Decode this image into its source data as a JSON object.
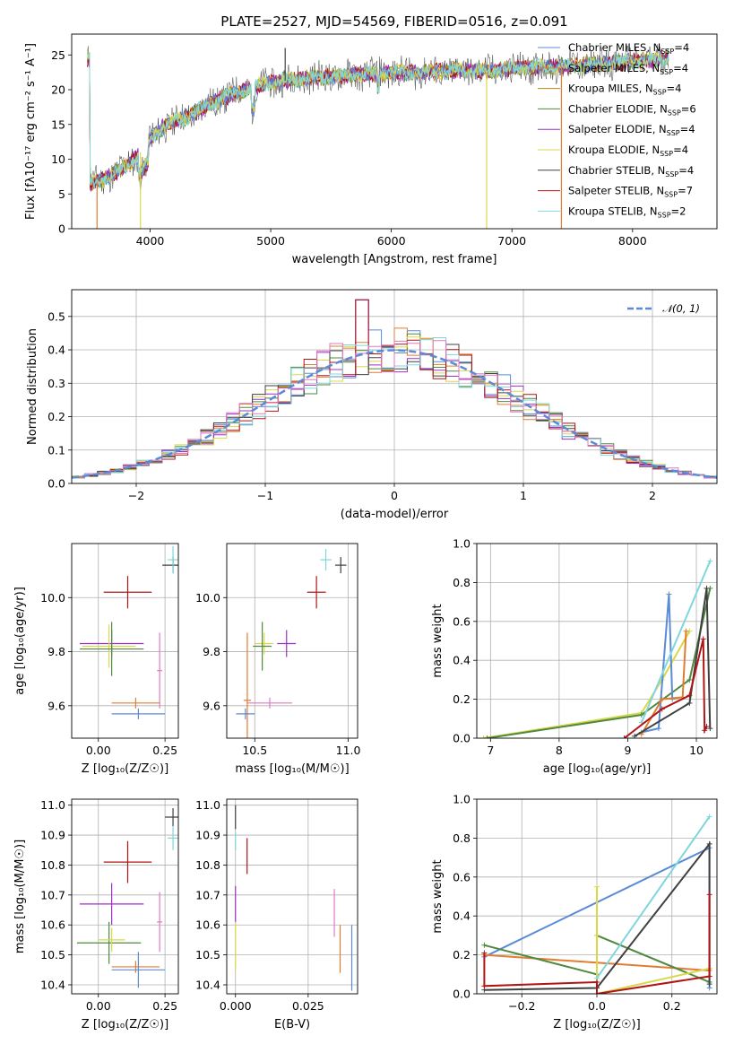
{
  "title": "PLATE=2527, MJD=54569, FIBERID=0516, z=0.091",
  "colors": {
    "chabrier_miles": "#5b8bd6",
    "salpeter_miles": "#e27c30",
    "kroupa_miles": "#b8860b",
    "chabrier_elodie": "#4f8a3f",
    "salpeter_elodie": "#9b30c8",
    "kroupa_elodie": "#d8d84a",
    "chabrier_stelib": "#404040",
    "salpeter_stelib": "#b01515",
    "kroupa_stelib": "#7fd6dc",
    "pink": "#e377c2",
    "grid": "#b0b0b0",
    "normal_curve": "#5b8bd6"
  },
  "chart_data": [
    {
      "id": "spectrum",
      "type": "line",
      "xlabel": "wavelength [Angstrom, rest frame]",
      "ylabel": "Flux [fλ10⁻¹⁷ erg cm⁻² s⁻¹ A⁻¹]",
      "xlim": [
        3350,
        8700
      ],
      "ylim": [
        0,
        28
      ],
      "xticks": [
        "4000",
        "5000",
        "6000",
        "7000",
        "8000"
      ],
      "yticks": [
        "0",
        "5",
        "10",
        "15",
        "20",
        "25"
      ],
      "grid": false,
      "legend_position": "top-right",
      "legend": [
        {
          "label": "Chabrier MILES, N",
          "sub": "SSP",
          "tail": "=4",
          "color": "chabrier_miles"
        },
        {
          "label": "Salpeter MILES, N",
          "sub": "SSP",
          "tail": "=4",
          "color": "salpeter_miles"
        },
        {
          "label": "Kroupa MILES, N",
          "sub": "SSP",
          "tail": "=4",
          "color": "kroupa_miles"
        },
        {
          "label": "Chabrier ELODIE, N",
          "sub": "SSP",
          "tail": "=6",
          "color": "chabrier_elodie"
        },
        {
          "label": "Salpeter ELODIE, N",
          "sub": "SSP",
          "tail": "=4",
          "color": "salpeter_elodie"
        },
        {
          "label": "Kroupa ELODIE, N",
          "sub": "SSP",
          "tail": "=4",
          "color": "kroupa_elodie"
        },
        {
          "label": "Chabrier STELIB, N",
          "sub": "SSP",
          "tail": "=4",
          "color": "chabrier_stelib"
        },
        {
          "label": "Salpeter STELIB, N",
          "sub": "SSP",
          "tail": "=7",
          "color": "salpeter_stelib"
        },
        {
          "label": "Kroupa STELIB, N",
          "sub": "SSP",
          "tail": "=2",
          "color": "kroupa_stelib"
        }
      ],
      "continuum": {
        "x": [
          3500,
          3600,
          3700,
          3800,
          3900,
          4000,
          4100,
          4200,
          4300,
          4400,
          4500,
          4600,
          4700,
          4800,
          4900,
          5000,
          5200,
          5400,
          5600,
          5800,
          6000,
          6200,
          6400,
          6600,
          6800,
          7000,
          7200,
          7400,
          7600,
          7800,
          8000,
          8200,
          8300
        ],
        "y": [
          6.5,
          7,
          8,
          9,
          10.5,
          13,
          14.5,
          15.5,
          16,
          17,
          18,
          18.8,
          19.5,
          20,
          20.5,
          21,
          21.5,
          21.8,
          22,
          22.3,
          22.5,
          22.4,
          22.6,
          22.8,
          22.7,
          23,
          23.2,
          23.4,
          23.5,
          23.8,
          24,
          24.3,
          24.5
        ]
      },
      "spikes": [
        {
          "x": 3560,
          "y": 0,
          "color": "salpeter_miles"
        },
        {
          "x": 3920,
          "y": 0,
          "color": "kroupa_elodie"
        },
        {
          "x": 5120,
          "y": 26,
          "color": "chabrier_stelib"
        },
        {
          "x": 6790,
          "y": 0,
          "color": "kroupa_elodie"
        },
        {
          "x": 7410,
          "y": 0,
          "color": "salpeter_miles"
        }
      ]
    },
    {
      "id": "residuals",
      "type": "histogram",
      "xlabel": "(data-model)/error",
      "ylabel": "Normed distribution",
      "xlim": [
        -2.5,
        2.5
      ],
      "ylim": [
        0,
        0.58
      ],
      "xticks": [
        "−2",
        "−1",
        "0",
        "1",
        "2"
      ],
      "yticks": [
        "0.0",
        "0.1",
        "0.2",
        "0.3",
        "0.4",
        "0.5"
      ],
      "grid": true,
      "legend_position": "top-right",
      "legend": [
        {
          "label": "𝒩(0, 1)",
          "style": "dashed",
          "color": "normal_curve"
        }
      ],
      "bin_width": 0.1,
      "series_colors": [
        "chabrier_miles",
        "salpeter_miles",
        "chabrier_elodie",
        "salpeter_elodie",
        "kroupa_elodie",
        "chabrier_stelib",
        "salpeter_stelib",
        "kroupa_stelib",
        "pink"
      ]
    },
    {
      "id": "age_vs_Z",
      "type": "errorbar",
      "xlabel": "Z [log₁₀(Z/Z☉)]",
      "ylabel": "age  [log₁₀(age/yr)]",
      "xlim": [
        -0.1,
        0.3
      ],
      "ylim": [
        9.48,
        10.2
      ],
      "xticks": [
        "0.00",
        "0.25"
      ],
      "yticks": [
        "9.6",
        "9.8",
        "10.0"
      ],
      "grid": true,
      "points": [
        {
          "x": 0.28,
          "y": 10.12,
          "xerr": 0.04,
          "yerr": 0.03,
          "color": "chabrier_stelib"
        },
        {
          "x": 0.28,
          "y": 10.14,
          "xerr": 0.02,
          "yerr": 0.05,
          "color": "kroupa_stelib"
        },
        {
          "x": 0.11,
          "y": 10.02,
          "xerr": 0.09,
          "yerr": 0.06,
          "color": "salpeter_stelib"
        },
        {
          "x": 0.05,
          "y": 9.83,
          "xerr": 0.12,
          "yerr": 0.05,
          "color": "salpeter_elodie"
        },
        {
          "x": 0.04,
          "y": 9.82,
          "xerr": 0.1,
          "yerr": 0.08,
          "color": "kroupa_elodie"
        },
        {
          "x": 0.05,
          "y": 9.81,
          "xerr": 0.12,
          "yerr": 0.1,
          "color": "chabrier_elodie"
        },
        {
          "x": 0.23,
          "y": 9.73,
          "xerr": 0.01,
          "yerr": 0.14,
          "color": "pink"
        },
        {
          "x": 0.14,
          "y": 9.61,
          "xerr": 0.09,
          "yerr": 0.02,
          "color": "salpeter_miles"
        },
        {
          "x": 0.15,
          "y": 9.57,
          "xerr": 0.1,
          "yerr": 0.02,
          "color": "chabrier_miles"
        }
      ]
    },
    {
      "id": "age_vs_mass",
      "type": "errorbar",
      "xlabel": "mass [log₁₀(M/M☉)]",
      "ylabel": "",
      "xlim": [
        10.35,
        11.05
      ],
      "ylim": [
        9.48,
        10.2
      ],
      "xticks": [
        "10.5",
        "11.0"
      ],
      "yticks": [
        "9.6",
        "9.8",
        "10.0"
      ],
      "grid": true,
      "points": [
        {
          "x": 10.96,
          "y": 10.12,
          "xerr": 0.03,
          "yerr": 0.03,
          "color": "chabrier_stelib"
        },
        {
          "x": 10.88,
          "y": 10.14,
          "xerr": 0.03,
          "yerr": 0.04,
          "color": "kroupa_stelib"
        },
        {
          "x": 10.83,
          "y": 10.02,
          "xerr": 0.05,
          "yerr": 0.06,
          "color": "salpeter_stelib"
        },
        {
          "x": 10.67,
          "y": 9.83,
          "xerr": 0.05,
          "yerr": 0.05,
          "color": "salpeter_elodie"
        },
        {
          "x": 10.55,
          "y": 9.83,
          "xerr": 0.05,
          "yerr": 0.04,
          "color": "kroupa_elodie"
        },
        {
          "x": 10.54,
          "y": 9.82,
          "xerr": 0.05,
          "yerr": 0.09,
          "color": "chabrier_elodie"
        },
        {
          "x": 10.58,
          "y": 9.61,
          "xerr": 0.12,
          "yerr": 0.02,
          "color": "pink"
        },
        {
          "x": 10.46,
          "y": 9.62,
          "xerr": 0.02,
          "yerr": 0.25,
          "color": "salpeter_miles"
        },
        {
          "x": 10.45,
          "y": 9.57,
          "xerr": 0.05,
          "yerr": 0.02,
          "color": "chabrier_miles"
        }
      ]
    },
    {
      "id": "weight_vs_age",
      "type": "line",
      "xlabel": "age  [log₁₀(age/yr)]",
      "ylabel": "mass weight",
      "xlim": [
        6.8,
        10.3
      ],
      "ylim": [
        0,
        1
      ],
      "xticks": [
        "7",
        "8",
        "9",
        "10"
      ],
      "yticks": [
        "0.0",
        "0.2",
        "0.4",
        "0.6",
        "0.8",
        "1.0"
      ],
      "grid": true,
      "series": [
        {
          "color": "kroupa_elodie",
          "x": [
            6.9,
            9.2,
            9.5,
            9.9
          ],
          "y": [
            0.0,
            0.13,
            0.3,
            0.55
          ]
        },
        {
          "color": "chabrier_elodie",
          "x": [
            6.95,
            9.2,
            9.9,
            10.2
          ],
          "y": [
            0.0,
            0.12,
            0.3,
            0.77
          ]
        },
        {
          "color": "chabrier_miles",
          "x": [
            9.2,
            9.45,
            9.6,
            9.65
          ],
          "y": [
            0.03,
            0.05,
            0.74,
            0.2
          ]
        },
        {
          "color": "salpeter_miles",
          "x": [
            9.2,
            9.5,
            9.8,
            9.85
          ],
          "y": [
            0.02,
            0.2,
            0.21,
            0.55
          ]
        },
        {
          "color": "kroupa_stelib",
          "x": [
            9.2,
            10.2
          ],
          "y": [
            0.08,
            0.91
          ]
        },
        {
          "color": "chabrier_stelib",
          "x": [
            9.1,
            9.9,
            10.15,
            10.2
          ],
          "y": [
            0.01,
            0.18,
            0.77,
            0.05
          ]
        },
        {
          "color": "salpeter_stelib",
          "x": [
            8.95,
            9.5,
            9.9,
            10.1,
            10.12,
            10.15
          ],
          "y": [
            0.0,
            0.15,
            0.22,
            0.51,
            0.04,
            0.06
          ]
        }
      ]
    },
    {
      "id": "mass_vs_Z",
      "type": "errorbar",
      "xlabel": "Z [log₁₀(Z/Z☉)]",
      "ylabel": "mass [log₁₀(M/M☉)]",
      "xlim": [
        -0.1,
        0.3
      ],
      "ylim": [
        10.37,
        11.02
      ],
      "xticks": [
        "0.00",
        "0.25"
      ],
      "yticks": [
        "10.4",
        "10.5",
        "10.6",
        "10.7",
        "10.8",
        "10.9",
        "11.0"
      ],
      "grid": true,
      "points": [
        {
          "x": 0.28,
          "y": 10.96,
          "xerr": 0.03,
          "yerr": 0.03,
          "color": "chabrier_stelib"
        },
        {
          "x": 0.28,
          "y": 10.89,
          "xerr": 0.02,
          "yerr": 0.04,
          "color": "kroupa_stelib"
        },
        {
          "x": 0.11,
          "y": 10.81,
          "xerr": 0.09,
          "yerr": 0.07,
          "color": "salpeter_stelib"
        },
        {
          "x": 0.05,
          "y": 10.67,
          "xerr": 0.12,
          "yerr": 0.07,
          "color": "salpeter_elodie"
        },
        {
          "x": 0.23,
          "y": 10.61,
          "xerr": 0.01,
          "yerr": 0.1,
          "color": "pink"
        },
        {
          "x": 0.04,
          "y": 10.54,
          "xerr": 0.12,
          "yerr": 0.07,
          "color": "chabrier_elodie"
        },
        {
          "x": 0.05,
          "y": 10.55,
          "xerr": 0.05,
          "yerr": 0.04,
          "color": "kroupa_elodie"
        },
        {
          "x": 0.14,
          "y": 10.46,
          "xerr": 0.09,
          "yerr": 0.02,
          "color": "salpeter_miles"
        },
        {
          "x": 0.15,
          "y": 10.45,
          "xerr": 0.1,
          "yerr": 0.06,
          "color": "chabrier_miles"
        }
      ]
    },
    {
      "id": "mass_vs_ebv",
      "type": "errorbar",
      "xlabel": "E(B-V)",
      "ylabel": "",
      "xlim": [
        -0.003,
        0.042
      ],
      "ylim": [
        10.37,
        11.02
      ],
      "xticks": [
        "0.000",
        "0.025"
      ],
      "yticks": [
        "10.4",
        "10.5",
        "10.6",
        "10.7",
        "10.8",
        "10.9",
        "11.0"
      ],
      "grid": true,
      "points": [
        {
          "x": 0.0,
          "y": 10.96,
          "xerr": 0,
          "yerr": 0.04,
          "color": "chabrier_stelib"
        },
        {
          "x": 0.0,
          "y": 10.88,
          "xerr": 0,
          "yerr": 0.03,
          "color": "kroupa_stelib"
        },
        {
          "x": 0.004,
          "y": 10.83,
          "xerr": 0,
          "yerr": 0.06,
          "color": "salpeter_stelib"
        },
        {
          "x": 0.0,
          "y": 10.67,
          "xerr": 0,
          "yerr": 0.06,
          "color": "salpeter_elodie"
        },
        {
          "x": 0.0,
          "y": 10.53,
          "xerr": 0,
          "yerr": 0.08,
          "color": "kroupa_elodie"
        },
        {
          "x": 0.034,
          "y": 10.64,
          "xerr": 0,
          "yerr": 0.08,
          "color": "pink"
        },
        {
          "x": 0.036,
          "y": 10.52,
          "xerr": 0,
          "yerr": 0.08,
          "color": "salpeter_miles"
        },
        {
          "x": 0.04,
          "y": 10.49,
          "xerr": 0,
          "yerr": 0.11,
          "color": "chabrier_miles"
        }
      ]
    },
    {
      "id": "weight_vs_Z",
      "type": "line",
      "xlabel": "Z [log₁₀(Z/Z☉)]",
      "ylabel": "mass weight",
      "xlim": [
        -0.32,
        0.32
      ],
      "ylim": [
        0,
        1
      ],
      "xticks": [
        "−0.2",
        "0.0",
        "0.2"
      ],
      "yticks": [
        "0.0",
        "0.2",
        "0.4",
        "0.6",
        "0.8",
        "1.0"
      ],
      "grid": true,
      "series": [
        {
          "color": "chabrier_miles",
          "x": [
            -0.3,
            0.3,
            0.3
          ],
          "y": [
            0.19,
            0.75,
            0.03
          ]
        },
        {
          "color": "salpeter_miles",
          "x": [
            -0.3,
            0.3,
            0.3
          ],
          "y": [
            0.2,
            0.12,
            0.13
          ]
        },
        {
          "color": "chabrier_elodie",
          "x": [
            -0.3,
            0.0,
            0.0,
            0.3
          ],
          "y": [
            0.25,
            0.1,
            0.3,
            0.06
          ]
        },
        {
          "color": "kroupa_elodie",
          "x": [
            0.0,
            0.0,
            0.0,
            0.3
          ],
          "y": [
            0.55,
            0.3,
            0.0,
            0.13
          ]
        },
        {
          "color": "kroupa_stelib",
          "x": [
            0.0,
            0.3
          ],
          "y": [
            0.08,
            0.91
          ]
        },
        {
          "color": "chabrier_stelib",
          "x": [
            -0.3,
            0.0,
            0.3,
            0.3
          ],
          "y": [
            0.02,
            0.03,
            0.77,
            0.05
          ]
        },
        {
          "color": "salpeter_stelib",
          "x": [
            -0.3,
            -0.3,
            0.0,
            0.0,
            0.3,
            0.3
          ],
          "y": [
            0.21,
            0.04,
            0.06,
            0.0,
            0.09,
            0.51
          ]
        }
      ]
    }
  ]
}
